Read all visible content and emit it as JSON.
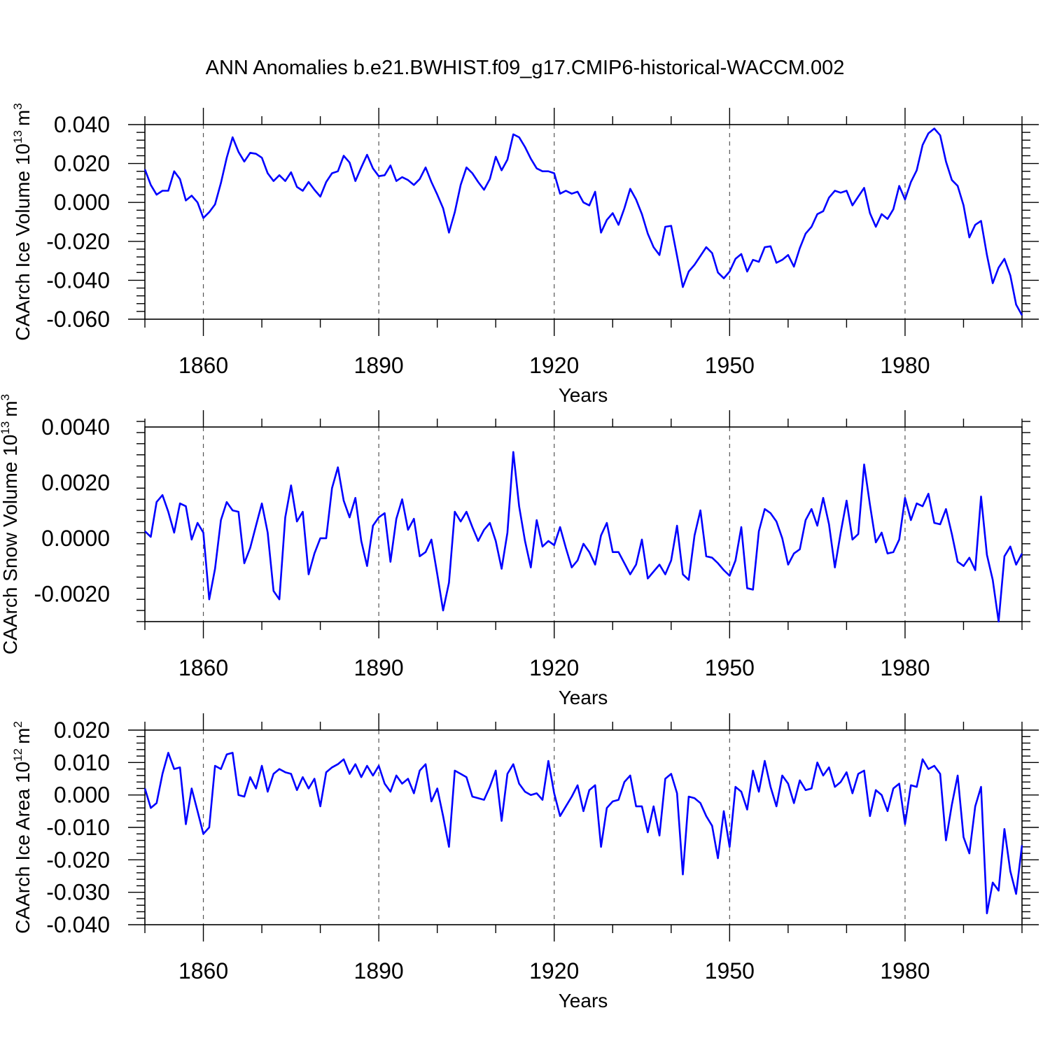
{
  "title": "ANN Anomalies b.e21.BWHIST.f09_g17.CMIP6-historical-WACCM.002",
  "colors": {
    "line": "#0000ff",
    "axis": "#000000",
    "grid": "#555555"
  },
  "chart_data": [
    {
      "type": "line",
      "ylabel_main": "CAArch Ice Volume 10",
      "ylabel_exp": "13",
      "ylabel_unit": "m",
      "ylabel_unit_exp": "3",
      "xlabel": "Years",
      "xlim": [
        1850,
        2000
      ],
      "ylim": [
        -0.06,
        0.04
      ],
      "xticks": [
        1860,
        1890,
        1920,
        1950,
        1980
      ],
      "xtick_labels": [
        "1860",
        "1890",
        "1920",
        "1950",
        "1980"
      ],
      "yticks": [
        0.04,
        0.02,
        0.0,
        -0.02,
        -0.04,
        -0.06
      ],
      "ytick_labels": [
        "0.040",
        "0.020",
        "0.000",
        "-0.020",
        "-0.040",
        "-0.060"
      ],
      "x_start": 1850,
      "values": [
        0.017,
        0.009,
        0.004,
        0.006,
        0.006,
        0.016,
        0.012,
        0.001,
        0.0035,
        0.0,
        -0.008,
        -0.005,
        -0.001,
        0.01,
        0.023,
        0.0335,
        0.026,
        0.021,
        0.0255,
        0.025,
        0.023,
        0.015,
        0.011,
        0.014,
        0.011,
        0.0155,
        0.008,
        0.006,
        0.0105,
        0.0065,
        0.003,
        0.0105,
        0.015,
        0.016,
        0.024,
        0.0205,
        0.011,
        0.018,
        0.0245,
        0.0175,
        0.0135,
        0.014,
        0.019,
        0.011,
        0.013,
        0.0115,
        0.009,
        0.012,
        0.018,
        0.0105,
        0.004,
        -0.003,
        -0.0155,
        -0.005,
        0.009,
        0.018,
        0.015,
        0.0105,
        0.0065,
        0.012,
        0.0235,
        0.0165,
        0.022,
        0.035,
        0.0335,
        0.0285,
        0.0225,
        0.0175,
        0.016,
        0.016,
        0.015,
        0.0045,
        0.006,
        0.0045,
        0.0055,
        0.0,
        -0.0015,
        0.0055,
        -0.0155,
        -0.009,
        -0.0055,
        -0.0115,
        -0.003,
        0.007,
        0.0015,
        -0.006,
        -0.016,
        -0.023,
        -0.027,
        -0.0125,
        -0.012,
        -0.0275,
        -0.0435,
        -0.0355,
        -0.032,
        -0.0275,
        -0.023,
        -0.026,
        -0.036,
        -0.039,
        -0.0355,
        -0.029,
        -0.0265,
        -0.0355,
        -0.0295,
        -0.0305,
        -0.023,
        -0.0225,
        -0.031,
        -0.0295,
        -0.027,
        -0.033,
        -0.0235,
        -0.016,
        -0.0125,
        -0.006,
        -0.0045,
        0.0025,
        0.006,
        0.005,
        0.006,
        -0.0015,
        0.003,
        0.0075,
        -0.0055,
        -0.0125,
        -0.006,
        -0.0085,
        -0.0035,
        0.0085,
        0.0015,
        0.0105,
        0.0165,
        0.0295,
        0.0355,
        0.038,
        0.0345,
        0.021,
        0.0115,
        0.0085,
        -0.0015,
        -0.018,
        -0.0115,
        -0.0095,
        -0.027,
        -0.0415,
        -0.0335,
        -0.029,
        -0.0375,
        -0.0525,
        -0.058
      ]
    },
    {
      "type": "line",
      "ylabel_main": "CAArch Snow Volume 10",
      "ylabel_exp": "13",
      "ylabel_unit": "m",
      "ylabel_unit_exp": "3",
      "xlabel": "Years",
      "xlim": [
        1850,
        2000
      ],
      "ylim": [
        -0.003,
        0.004
      ],
      "xticks": [
        1860,
        1890,
        1920,
        1950,
        1980
      ],
      "xtick_labels": [
        "1860",
        "1890",
        "1920",
        "1950",
        "1980"
      ],
      "yticks": [
        0.004,
        0.002,
        0.0,
        -0.002
      ],
      "ytick_labels": [
        "0.0040",
        "0.0020",
        "0.0000",
        "-0.0020"
      ],
      "x_start": 1850,
      "values": [
        0.00025,
        5e-05,
        0.0013,
        0.00155,
        0.00095,
        0.0002,
        0.00125,
        0.00115,
        -5e-05,
        0.00055,
        0.0002,
        -0.0022,
        -0.0011,
        0.00065,
        0.0013,
        0.001,
        0.00095,
        -0.0009,
        -0.00035,
        0.00045,
        0.00125,
        0.0002,
        -0.0019,
        -0.0022,
        0.00075,
        0.0019,
        0.0006,
        0.00095,
        -0.0013,
        -0.00055,
        0.0,
        0.0,
        0.0018,
        0.00255,
        0.00135,
        0.00075,
        0.00145,
        -0.0001,
        -0.001,
        0.00045,
        0.00075,
        0.0009,
        -0.00085,
        0.0007,
        0.0014,
        0.0003,
        0.0007,
        -0.00065,
        -0.0005,
        -5e-05,
        -0.0013,
        -0.0026,
        -0.0016,
        0.00095,
        0.0006,
        0.00095,
        0.0004,
        -0.0001,
        0.0003,
        0.00055,
        -0.0001,
        -0.0011,
        0.0002,
        0.0031,
        0.00115,
        -0.0001,
        -0.00105,
        0.00065,
        -0.0003,
        -0.0001,
        -0.00025,
        0.0004,
        -0.00035,
        -0.00105,
        -0.0008,
        -0.0002,
        -0.0005,
        -0.00095,
        0.0001,
        0.00055,
        -0.0005,
        -0.0005,
        -0.0009,
        -0.0013,
        -0.00095,
        -5e-05,
        -0.00145,
        -0.0012,
        -0.00095,
        -0.0013,
        -0.0008,
        0.00045,
        -0.0013,
        -0.0015,
        0.0001,
        0.001,
        -0.00065,
        -0.0007,
        -0.0009,
        -0.00115,
        -0.00135,
        -0.0008,
        0.0004,
        -0.0018,
        -0.00185,
        0.00025,
        0.00105,
        0.0009,
        0.0006,
        0.0,
        -0.00095,
        -0.00055,
        -0.0004,
        0.00065,
        0.00105,
        0.00045,
        0.00145,
        0.0005,
        -0.00105,
        0.0002,
        0.00135,
        -5e-05,
        0.00015,
        0.00265,
        0.0012,
        -0.00015,
        0.0002,
        -0.00055,
        -0.0005,
        -5e-05,
        0.00145,
        0.00065,
        0.00125,
        0.00115,
        0.0016,
        0.00055,
        0.0005,
        0.00105,
        0.00015,
        -0.00085,
        -0.001,
        -0.0007,
        -0.00115,
        0.0015,
        -0.0006,
        -0.0015,
        -0.003,
        -0.00065,
        -0.0003,
        -0.00095,
        -0.00055
      ]
    },
    {
      "type": "line",
      "ylabel_main": "CAArch Ice Area 10",
      "ylabel_exp": "12",
      "ylabel_unit": "m",
      "ylabel_unit_exp": "2",
      "xlabel": "Years",
      "xlim": [
        1850,
        2000
      ],
      "ylim": [
        -0.04,
        0.02
      ],
      "xticks": [
        1860,
        1890,
        1920,
        1950,
        1980
      ],
      "xtick_labels": [
        "1860",
        "1890",
        "1920",
        "1950",
        "1980"
      ],
      "yticks": [
        0.02,
        0.01,
        0.0,
        -0.01,
        -0.02,
        -0.03,
        -0.04
      ],
      "ytick_labels": [
        "0.020",
        "0.010",
        "0.000",
        "-0.010",
        "-0.020",
        "-0.030",
        "-0.040"
      ],
      "x_start": 1850,
      "values": [
        0.002,
        -0.004,
        -0.0025,
        0.0065,
        0.013,
        0.008,
        0.0085,
        -0.009,
        0.002,
        -0.005,
        -0.012,
        -0.01,
        0.009,
        0.008,
        0.0125,
        0.013,
        0.0,
        -0.0005,
        0.0055,
        0.002,
        0.009,
        0.001,
        0.0065,
        0.008,
        0.007,
        0.0065,
        0.0015,
        0.0055,
        0.002,
        0.005,
        -0.0035,
        0.007,
        0.0085,
        0.0095,
        0.011,
        0.0065,
        0.0095,
        0.0055,
        0.009,
        0.006,
        0.009,
        0.0035,
        0.001,
        0.006,
        0.0035,
        0.005,
        0.0005,
        0.0075,
        0.0095,
        -0.002,
        0.002,
        -0.0065,
        -0.016,
        0.0075,
        0.0065,
        0.0055,
        -0.0005,
        -0.001,
        -0.0015,
        0.0025,
        0.0075,
        -0.008,
        0.0065,
        0.0095,
        0.0035,
        0.001,
        0.0,
        0.0005,
        -0.0015,
        0.0105,
        0.0005,
        -0.0065,
        -0.0035,
        -0.0005,
        0.003,
        -0.005,
        0.0015,
        0.003,
        -0.016,
        -0.004,
        -0.002,
        -0.0015,
        0.004,
        0.006,
        -0.0035,
        -0.0035,
        -0.0115,
        -0.0035,
        -0.0125,
        0.005,
        0.0065,
        0.0005,
        -0.0245,
        -0.0005,
        -0.001,
        -0.0025,
        -0.0065,
        -0.0095,
        -0.0195,
        -0.005,
        -0.016,
        0.0025,
        0.001,
        -0.0045,
        0.0075,
        0.001,
        0.0105,
        0.0025,
        -0.0035,
        0.006,
        0.0035,
        -0.0025,
        0.0045,
        0.0015,
        0.002,
        0.01,
        0.006,
        0.0085,
        0.0025,
        0.004,
        0.007,
        0.0005,
        0.0065,
        0.0075,
        -0.0065,
        0.0015,
        0.0,
        -0.005,
        0.002,
        0.0035,
        -0.009,
        0.003,
        0.0025,
        0.011,
        0.008,
        0.009,
        0.0065,
        -0.014,
        -0.003,
        0.006,
        -0.013,
        -0.018,
        -0.0035,
        0.0025,
        -0.0365,
        -0.027,
        -0.0295,
        -0.0105,
        -0.0235,
        -0.0305,
        -0.0155
      ]
    }
  ]
}
